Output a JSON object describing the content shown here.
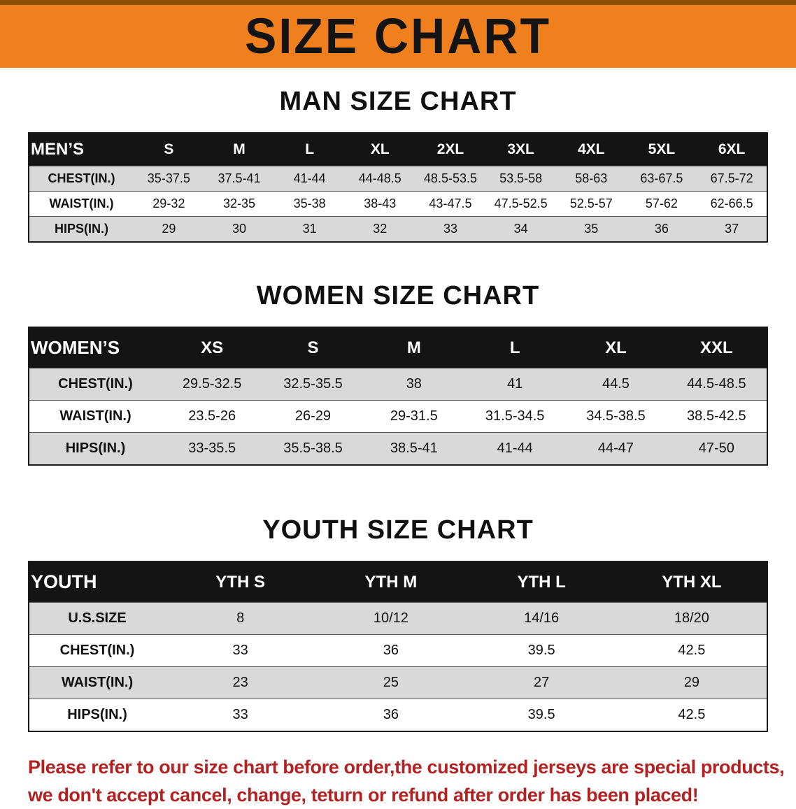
{
  "banner": {
    "title": "SIZE CHART"
  },
  "sections": [
    {
      "heading": "MAN SIZE CHART",
      "table": {
        "header": [
          "MEN’S",
          "S",
          "M",
          "L",
          "XL",
          "2XL",
          "3XL",
          "4XL",
          "5XL",
          "6XL"
        ],
        "rows": [
          [
            "CHEST(IN.)",
            "35-37.5",
            "37.5-41",
            "41-44",
            "44-48.5",
            "48.5-53.5",
            "53.5-58",
            "58-63",
            "63-67.5",
            "67.5-72"
          ],
          [
            "WAIST(IN.)",
            "29-32",
            "32-35",
            "35-38",
            "38-43",
            "43-47.5",
            "47.5-52.5",
            "52.5-57",
            "57-62",
            "62-66.5"
          ],
          [
            "HIPS(IN.)",
            "29",
            "30",
            "31",
            "32",
            "33",
            "34",
            "35",
            "36",
            "37"
          ]
        ]
      }
    },
    {
      "heading": "WOMEN SIZE CHART",
      "table": {
        "header": [
          "WOMEN’S",
          "XS",
          "S",
          "M",
          "L",
          "XL",
          "XXL"
        ],
        "rows": [
          [
            "CHEST(IN.)",
            "29.5-32.5",
            "32.5-35.5",
            "38",
            "41",
            "44.5",
            "44.5-48.5"
          ],
          [
            "WAIST(IN.)",
            "23.5-26",
            "26-29",
            "29-31.5",
            "31.5-34.5",
            "34.5-38.5",
            "38.5-42.5"
          ],
          [
            "HIPS(IN.)",
            "33-35.5",
            "35.5-38.5",
            "38.5-41",
            "41-44",
            "44-47",
            "47-50"
          ]
        ]
      }
    },
    {
      "heading": "YOUTH SIZE CHART",
      "table": {
        "header": [
          "YOUTH",
          "YTH S",
          "YTH M",
          "YTH L",
          "YTH XL"
        ],
        "rows": [
          [
            "U.S.SIZE",
            "8",
            "10/12",
            "14/16",
            "18/20"
          ],
          [
            "CHEST(IN.)",
            "33",
            "36",
            "39.5",
            "42.5"
          ],
          [
            "WAIST(IN.)",
            "23",
            "25",
            "27",
            "29"
          ],
          [
            "HIPS(IN.)",
            "33",
            "36",
            "39.5",
            "42.5"
          ]
        ]
      }
    }
  ],
  "disclaimer": {
    "lines": [
      "Please refer to our size chart before order,the customized jerseys are special products,",
      "we don't accept cancel, change, teturn or refund after order has been placed!"
    ]
  },
  "colors": {
    "banner_orange": "#F0801E",
    "table_header_black": "#141414",
    "stripe_gray": "#D9D9D9",
    "disclaimer_red": "#B22222"
  }
}
